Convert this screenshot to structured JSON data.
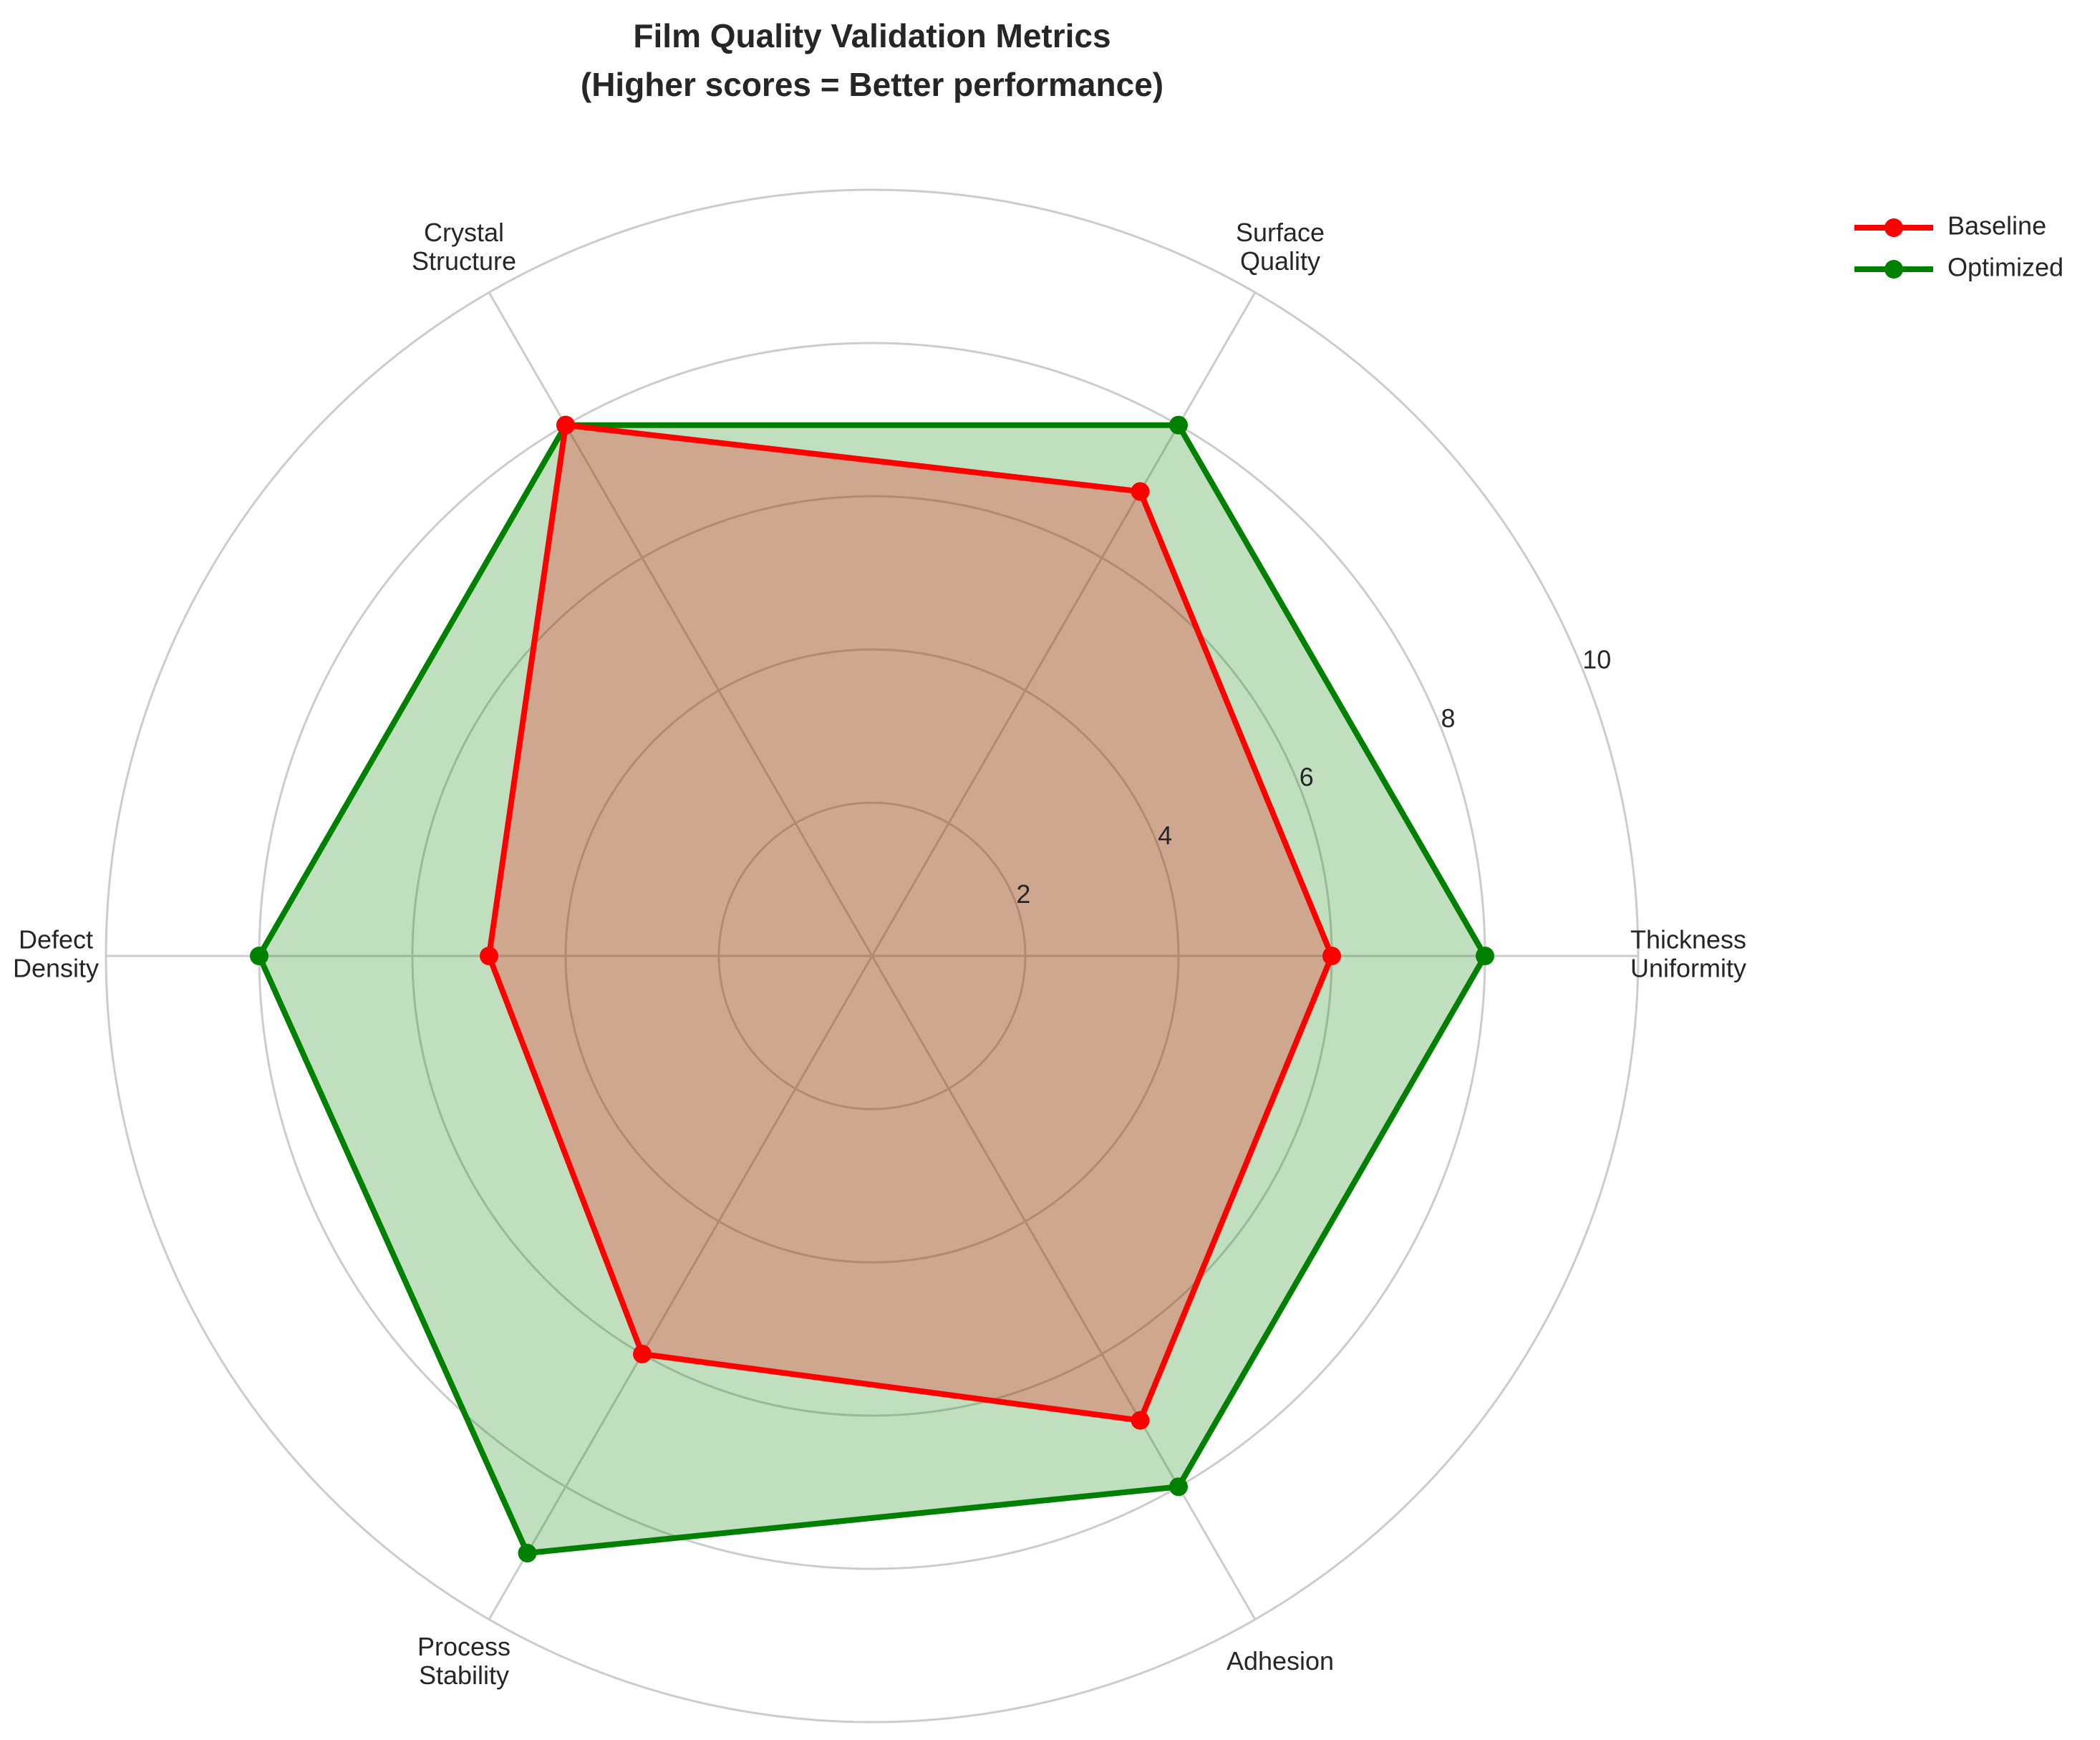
{
  "chart_data": {
    "type": "radar",
    "title_lines": [
      "Film Quality Validation Metrics",
      "(Higher scores = Better performance)"
    ],
    "categories": [
      [
        "Thickness",
        "Uniformity"
      ],
      [
        "Surface",
        "Quality"
      ],
      [
        "Crystal",
        "Structure"
      ],
      [
        "Defect",
        "Density"
      ],
      [
        "Process",
        "Stability"
      ],
      [
        "Adhesion"
      ]
    ],
    "rlim": [
      0,
      10
    ],
    "rticks": [
      2,
      4,
      6,
      8,
      10
    ],
    "rtick_labels": [
      "2",
      "4",
      "6",
      "8",
      "10"
    ],
    "grid": true,
    "legend_position": "top-right",
    "series": [
      {
        "name": "Baseline",
        "values": [
          6,
          7,
          8,
          5,
          6,
          7
        ],
        "color": "#ff0000",
        "fill": "#ff0000",
        "fill_opacity": 0.25
      },
      {
        "name": "Optimized",
        "values": [
          8,
          8,
          8,
          8,
          9,
          8
        ],
        "color": "#008000",
        "fill": "#008000",
        "fill_opacity": 0.25
      }
    ]
  }
}
